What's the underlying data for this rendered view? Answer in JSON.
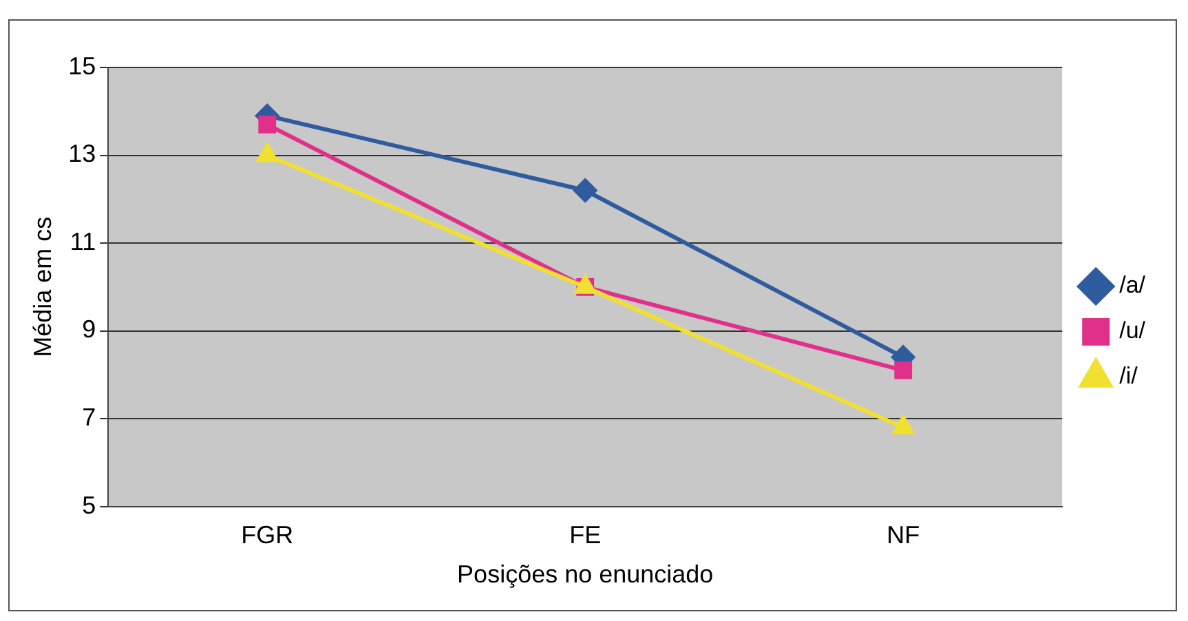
{
  "chart_data": {
    "type": "line",
    "xlabel": "Posições no enunciado",
    "ylabel": "Média em cs",
    "categories": [
      "FGR",
      "FE",
      "NF"
    ],
    "series": [
      {
        "name": "/a/",
        "color": "#2e5c9e",
        "marker": "diamond",
        "values": [
          13.9,
          12.2,
          8.4
        ]
      },
      {
        "name": "/u/",
        "color": "#e0308a",
        "marker": "square",
        "values": [
          13.7,
          10.0,
          8.1
        ]
      },
      {
        "name": "/i/",
        "color": "#f0e030",
        "marker": "triangle",
        "values": [
          13.0,
          10.0,
          6.8
        ]
      }
    ],
    "ylim": [
      5,
      15
    ],
    "yticks": [
      5,
      7,
      9,
      11,
      13,
      15
    ],
    "grid": "y",
    "legend": "right"
  }
}
